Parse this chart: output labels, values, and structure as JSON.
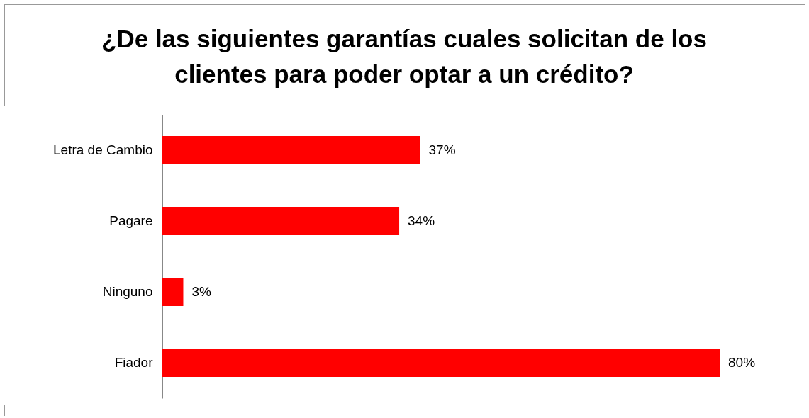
{
  "chart_data": {
    "type": "bar",
    "orientation": "horizontal",
    "title": "¿De las siguientes garantías cuales solicitan de los clientes para poder optar a un crédito?",
    "categories": [
      "Letra de Cambio",
      "Pagare",
      "Ninguno",
      "Fiador"
    ],
    "values": [
      37,
      34,
      3,
      80
    ],
    "value_labels": [
      "37%",
      "34%",
      "3%",
      "80%"
    ],
    "color": "#ff0000"
  }
}
